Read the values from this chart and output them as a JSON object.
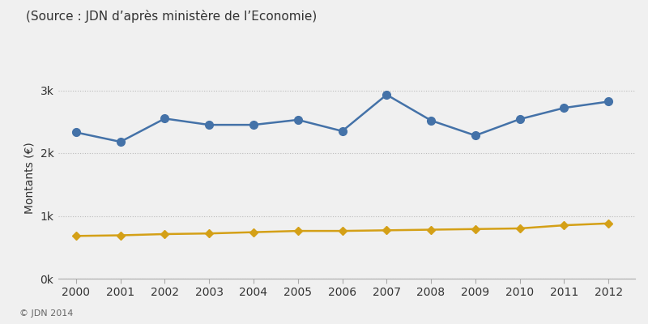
{
  "years": [
    2000,
    2001,
    2002,
    2003,
    2004,
    2005,
    2006,
    2007,
    2008,
    2009,
    2010,
    2011,
    2012
  ],
  "produits": [
    2330,
    2180,
    2550,
    2450,
    2450,
    2530,
    2350,
    2930,
    2520,
    2280,
    2540,
    2720,
    2820
  ],
  "nationale": [
    680,
    690,
    710,
    720,
    740,
    760,
    760,
    770,
    780,
    790,
    800,
    850,
    880
  ],
  "produits_color": "#4472a8",
  "nationale_color": "#d4a017",
  "background_color": "#f0f0f0",
  "ylabel": "Montants (€)",
  "source_text": "(Source : JDN d’après ministère de l’Economie)",
  "copyright_text": "© JDN 2014",
  "ylim": [
    0,
    3200
  ],
  "yticks": [
    0,
    1000,
    2000,
    3000
  ],
  "ytick_labels": [
    "0k",
    "1k",
    "2k",
    "3k"
  ],
  "grid_color": "#bbbbbb",
  "source_fontsize": 11,
  "axis_fontsize": 10,
  "legend_fontsize": 10,
  "copyright_fontsize": 8,
  "line_width": 1.8,
  "marker_size": 7
}
